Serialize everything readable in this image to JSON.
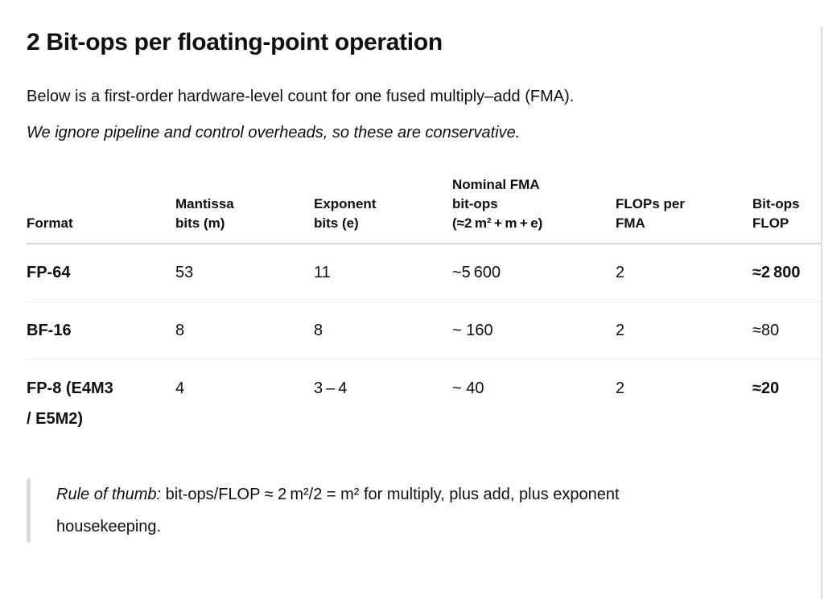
{
  "page": {
    "heading": "2 Bit-ops per floating-point operation",
    "intro": "Below is a first-order hardware-level count for one fused multiply–add (FMA).",
    "note": "We ignore pipeline and control overheads, so these are conservative."
  },
  "table": {
    "columns": [
      {
        "label": "Format"
      },
      {
        "label": "Mantissa\nbits (m)"
      },
      {
        "label": "Exponent\nbits (e)"
      },
      {
        "label": "Nominal FMA\nbit-ops\n(≈2 m² + m + e)"
      },
      {
        "label": "FLOPs per\nFMA"
      },
      {
        "label": "Bit-ops\nFLOP"
      }
    ],
    "rows": [
      {
        "cells": [
          {
            "text": "FP-64",
            "bold": true
          },
          {
            "text": "53"
          },
          {
            "text": "11"
          },
          {
            "text": "~5 600"
          },
          {
            "text": "2"
          },
          {
            "text": "≈2 800",
            "bold": true
          }
        ]
      },
      {
        "cells": [
          {
            "text": "BF-16",
            "bold": true
          },
          {
            "text": "8"
          },
          {
            "text": "8"
          },
          {
            "text": "~ 160"
          },
          {
            "text": "2"
          },
          {
            "text": "≈80"
          }
        ]
      },
      {
        "cells": [
          {
            "text": "FP-8 (E4M3\n/ E5M2)",
            "bold": true
          },
          {
            "text": "4"
          },
          {
            "text": "3 – 4"
          },
          {
            "text": "~ 40"
          },
          {
            "text": "2"
          },
          {
            "text": "≈20",
            "bold": true
          }
        ]
      }
    ]
  },
  "quote": {
    "lead": "Rule of thumb:",
    "body": " bit-ops/FLOP ≈ 2 m²/2 = m² for multiply, plus add, plus exponent housekeeping."
  },
  "colors": {
    "text": "#0f0f0f",
    "header_border": "#d6d6d6",
    "row_border": "#ececec",
    "quote_bar": "#d9d9d9",
    "page_edge": "#dcdcdc"
  }
}
